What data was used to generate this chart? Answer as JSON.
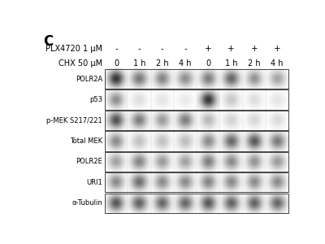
{
  "panel_label": "C",
  "row1_label": "PLX4720 1 μM",
  "row2_label": "CHX 50 μM",
  "row1_values": [
    "-",
    "-",
    "-",
    "-",
    "+",
    "+",
    "+",
    "+"
  ],
  "row2_values": [
    "0",
    "1 h",
    "2 h",
    "4 h",
    "0",
    "1 h",
    "2 h",
    "4 h"
  ],
  "band_labels": [
    "POLR2A",
    "p53",
    "p-MEK S217/221",
    "Total MEK",
    "POLR2E",
    "URI1",
    "α-Tubulin"
  ],
  "background": "#ffffff",
  "border_color": "#444444",
  "n_lanes": 8,
  "bands": {
    "POLR2A": [
      0.9,
      0.6,
      0.55,
      0.5,
      0.58,
      0.68,
      0.48,
      0.4
    ],
    "p53": [
      0.5,
      0.15,
      0.12,
      0.1,
      0.9,
      0.25,
      0.15,
      0.12
    ],
    "p-MEK S217/221": [
      0.78,
      0.58,
      0.45,
      0.58,
      0.32,
      0.2,
      0.18,
      0.16
    ],
    "Total MEK": [
      0.52,
      0.28,
      0.28,
      0.3,
      0.52,
      0.68,
      0.75,
      0.6
    ],
    "POLR2E": [
      0.42,
      0.55,
      0.45,
      0.42,
      0.58,
      0.52,
      0.48,
      0.45
    ],
    "URI1": [
      0.52,
      0.65,
      0.52,
      0.52,
      0.55,
      0.52,
      0.52,
      0.52
    ],
    "α-Tubulin": [
      0.75,
      0.7,
      0.68,
      0.68,
      0.75,
      0.7,
      0.7,
      0.68
    ]
  },
  "lane_label_fontsize": 6.5,
  "protein_label_fontsize": 6.0,
  "header_fontsize": 7.0,
  "panel_fontsize": 12
}
